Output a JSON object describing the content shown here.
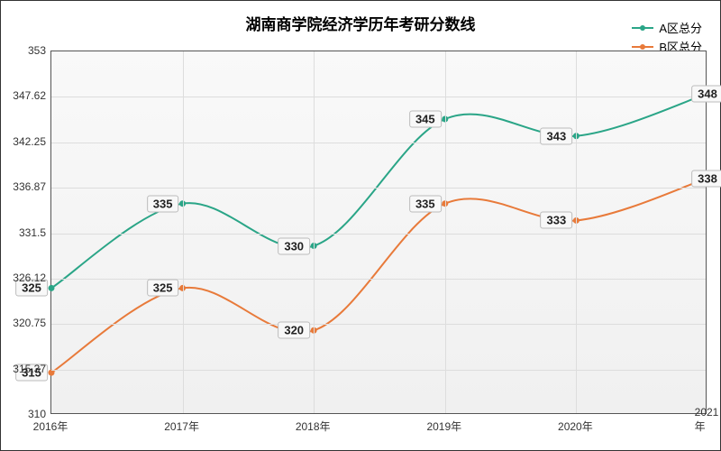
{
  "chart": {
    "type": "line",
    "title": "湖南商学院经济学历年考研分数线",
    "title_fontsize": 17,
    "background_color": "#ffffff",
    "plot_background": "#f5f5f5",
    "grid_color": "#dddddd",
    "border_color": "#333333",
    "xlabels": [
      "2016年",
      "2017年",
      "2018年",
      "2019年",
      "2020年",
      "2021年"
    ],
    "ylim": [
      310,
      353
    ],
    "yticks": [
      310,
      315.37,
      320.75,
      326.12,
      331.5,
      336.87,
      342.25,
      347.62,
      353
    ],
    "label_fontsize": 12,
    "series": [
      {
        "name": "A区总分",
        "color": "#2aa587",
        "values": [
          325,
          335,
          330,
          345,
          343,
          348
        ],
        "line_width": 2,
        "marker": "circle"
      },
      {
        "name": "B区总分",
        "color": "#e87a3a",
        "values": [
          315,
          325,
          320,
          335,
          333,
          338
        ],
        "line_width": 2,
        "marker": "circle"
      }
    ],
    "legend_position": "top-right",
    "data_label_bg": "#f8f8f8",
    "data_label_border": "#bbbbbb"
  }
}
